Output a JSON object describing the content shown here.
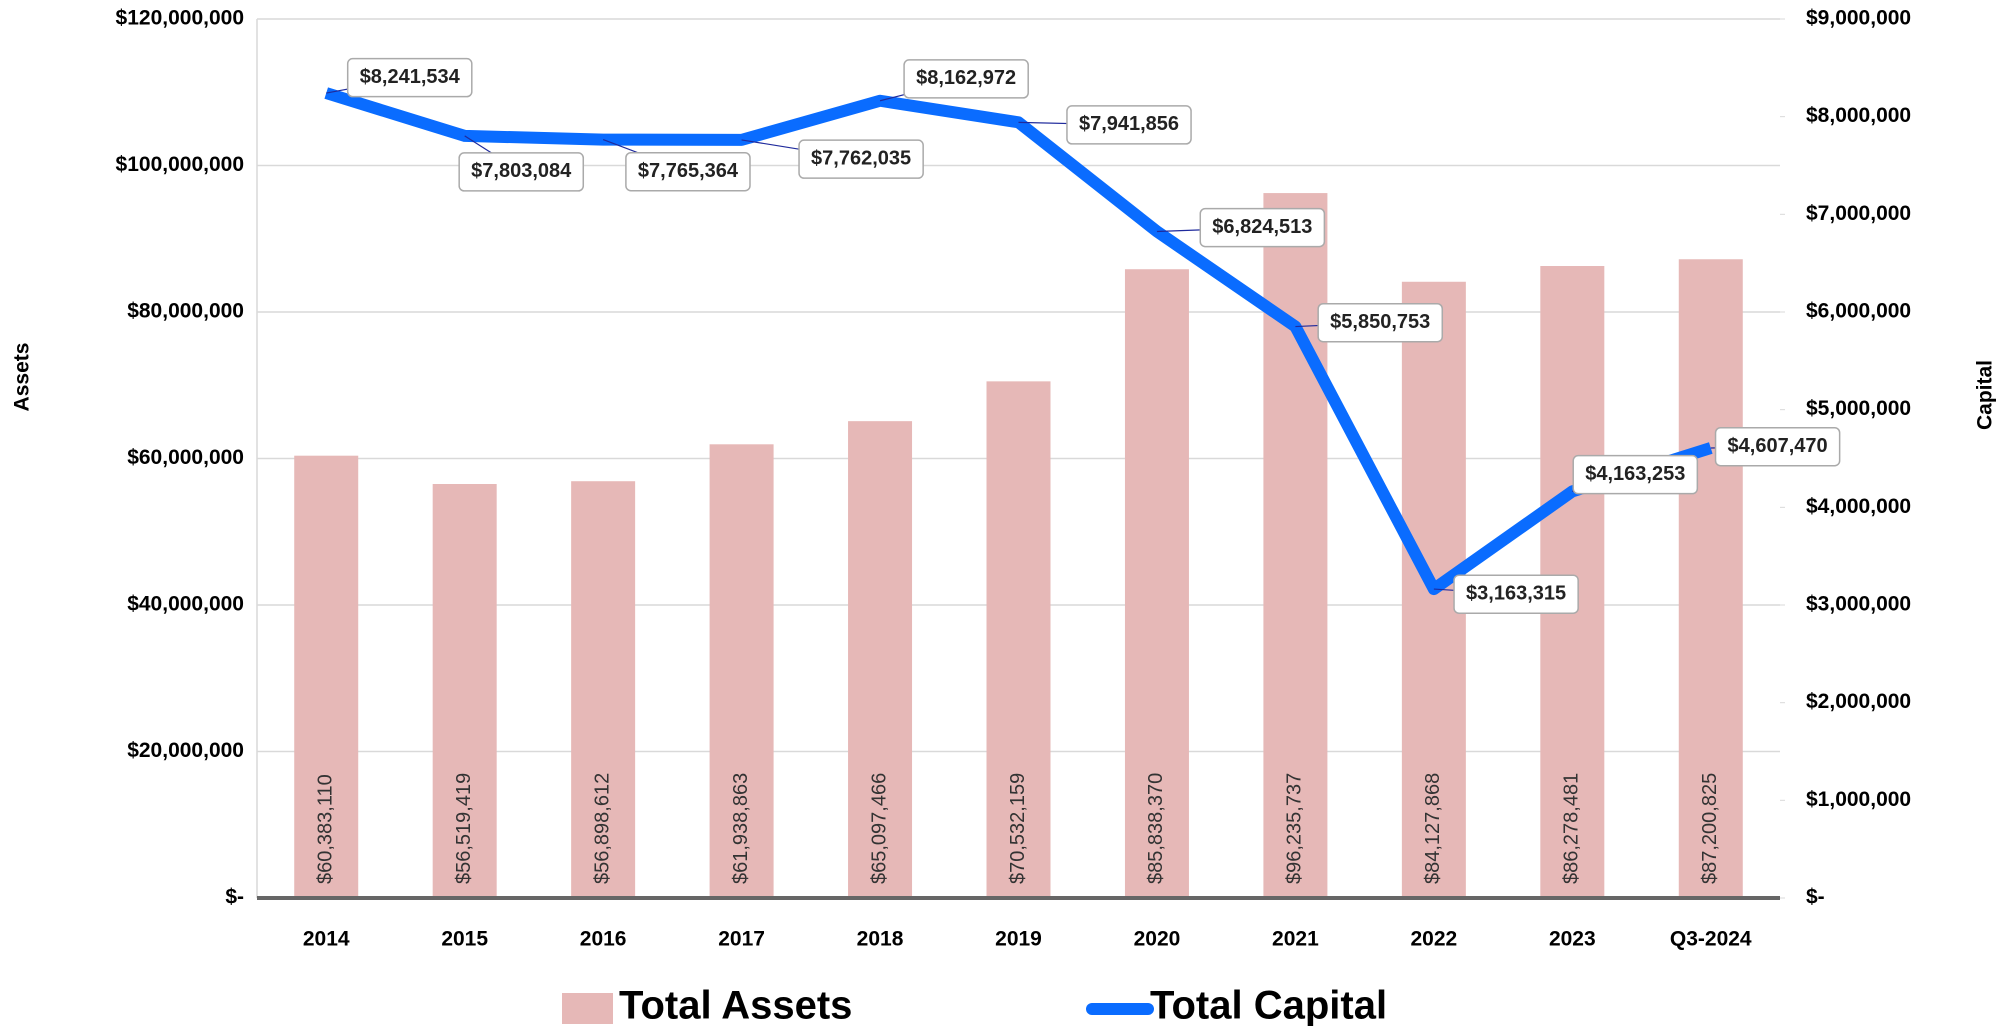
{
  "chart_data": {
    "type": "bar_line",
    "categories": [
      "2014",
      "2015",
      "2016",
      "2017",
      "2018",
      "2019",
      "2020",
      "2021",
      "2022",
      "2023",
      "Q3-2024"
    ],
    "y_label": "Assets",
    "y2_label": "Capital",
    "ylim": [
      0,
      120000000
    ],
    "yticks": [
      {
        "value": 0,
        "label": "$-"
      },
      {
        "value": 20000000,
        "label": "$20,000,000"
      },
      {
        "value": 40000000,
        "label": "$40,000,000"
      },
      {
        "value": 60000000,
        "label": "$60,000,000"
      },
      {
        "value": 80000000,
        "label": "$80,000,000"
      },
      {
        "value": 100000000,
        "label": "$100,000,000"
      },
      {
        "value": 120000000,
        "label": "$120,000,000"
      }
    ],
    "y2lim": [
      0,
      9000000
    ],
    "y2ticks": [
      {
        "value": 0,
        "label": "$-"
      },
      {
        "value": 1000000,
        "label": "$1,000,000"
      },
      {
        "value": 2000000,
        "label": "$2,000,000"
      },
      {
        "value": 3000000,
        "label": "$3,000,000"
      },
      {
        "value": 4000000,
        "label": "$4,000,000"
      },
      {
        "value": 5000000,
        "label": "$5,000,000"
      },
      {
        "value": 6000000,
        "label": "$6,000,000"
      },
      {
        "value": 7000000,
        "label": "$7,000,000"
      },
      {
        "value": 8000000,
        "label": "$8,000,000"
      },
      {
        "value": 9000000,
        "label": "$9,000,000"
      }
    ],
    "grid": true,
    "series": [
      {
        "name": "Total Assets",
        "type": "bar",
        "color": "#e6b8b7",
        "values": [
          60383110,
          56519419,
          56898612,
          61938863,
          65097466,
          70532159,
          85838370,
          96235737,
          84127868,
          86278481,
          87200825
        ],
        "value_labels": [
          "$60,383,110",
          "$56,519,419",
          "$56,898,612",
          "$61,938,863",
          "$65,097,466",
          "$70,532,159",
          "$85,838,370",
          "$96,235,737",
          "$84,127,868",
          "$86,278,481",
          "$87,200,825"
        ]
      },
      {
        "name": "Total Capital",
        "type": "line",
        "axis": "y2",
        "color": "#0a6cff",
        "values": [
          8241534,
          7803084,
          7765364,
          7762035,
          8162972,
          7941856,
          6824513,
          5850753,
          3163315,
          4163253,
          4607470
        ],
        "value_labels": [
          "$8,241,534",
          "$7,803,084",
          "$7,765,364",
          "$7,762,035",
          "$8,162,972",
          "$7,941,856",
          "$6,824,513",
          "$5,850,753",
          "$3,163,315",
          "$4,163,253",
          "$4,607,470"
        ]
      }
    ]
  }
}
